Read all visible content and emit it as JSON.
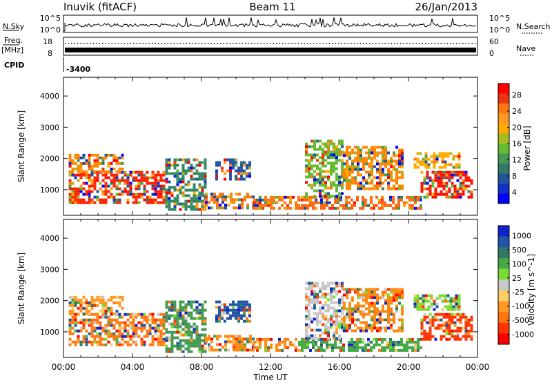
{
  "header": {
    "station": "Inuvik (fitACF)",
    "beam": "Beam 11",
    "date": "26/Jan/2013"
  },
  "strips": {
    "nsky_label": "N.Sky",
    "nsky_ticks": [
      "10^5",
      "10^0"
    ],
    "nsearch_label": "N.Search",
    "nsearch_ticks": [
      "10^5",
      "10^0"
    ],
    "freq_label": "Freq.",
    "freq_unit": "[MHz]",
    "freq_ticks": [
      "18",
      "8"
    ],
    "nave_label": "Nave",
    "nave_ticks": [
      "60",
      "0"
    ],
    "cpid_label": "CPID",
    "cpid_value": "-3400"
  },
  "axes": {
    "ylabel": "Slant Range [km]",
    "xlabel": "Time UT"
  },
  "chart_data": [
    {
      "type": "heatmap",
      "panel": "power",
      "x_range_hours": [
        0,
        24
      ],
      "x_ticks": [
        "00:00",
        "04:00",
        "08:00",
        "12:00",
        "16:00",
        "20:00",
        "00:00"
      ],
      "y_range_km": [
        180,
        4600
      ],
      "y_ticks": [
        1000,
        2000,
        3000,
        4000
      ],
      "colorbar": {
        "label": "Power [dB]",
        "ticks": [
          "28",
          "24",
          "20",
          "16",
          "12",
          "8",
          "4"
        ],
        "colors": [
          "#ff0000",
          "#ee3311",
          "#ff7711",
          "#ff9922",
          "#ffaa00",
          "#aabb22",
          "#66bb33",
          "#449955",
          "#337766",
          "#225599",
          "#1133cc",
          "#0000ff"
        ]
      },
      "echo_regions": [
        {
          "t": [
            0.3,
            5.9
          ],
          "r": [
            550,
            1600
          ],
          "dominant": "#ff2200"
        },
        {
          "t": [
            0.3,
            3.4
          ],
          "r": [
            1550,
            2150
          ],
          "dominant": "#ff8800"
        },
        {
          "t": [
            5.9,
            8.2
          ],
          "r": [
            400,
            2000
          ],
          "dominant": "#338866"
        },
        {
          "t": [
            8.2,
            11.0
          ],
          "r": [
            450,
            900
          ],
          "dominant": "#ff7711"
        },
        {
          "t": [
            8.8,
            10.8
          ],
          "r": [
            1300,
            2000
          ],
          "dominant": "#2255aa"
        },
        {
          "t": [
            11.0,
            13.6
          ],
          "r": [
            400,
            800
          ],
          "dominant": "#ff7711"
        },
        {
          "t": [
            13.6,
            20.7
          ],
          "r": [
            400,
            800
          ],
          "dominant": "#ff6611"
        },
        {
          "t": [
            14.0,
            16.2
          ],
          "r": [
            800,
            2600
          ],
          "dominant": "#66bb33"
        },
        {
          "t": [
            16.2,
            19.6
          ],
          "r": [
            1000,
            2400
          ],
          "dominant": "#ff8800"
        },
        {
          "t": [
            20.7,
            23.7
          ],
          "r": [
            750,
            1600
          ],
          "dominant": "#ff1100"
        },
        {
          "t": [
            20.3,
            23.0
          ],
          "r": [
            1700,
            2200
          ],
          "dominant": "#ffaa00"
        }
      ]
    },
    {
      "type": "heatmap",
      "panel": "velocity",
      "x_range_hours": [
        0,
        24
      ],
      "x_ticks": [
        "00:00",
        "04:00",
        "08:00",
        "12:00",
        "16:00",
        "20:00",
        "00:00"
      ],
      "y_range_km": [
        180,
        4600
      ],
      "y_ticks": [
        1000,
        2000,
        3000,
        4000
      ],
      "colorbar": {
        "label": "Velocity [m s^-1]",
        "ticks": [
          "1000",
          "500",
          "100",
          "25",
          "-25",
          "-100",
          "-500",
          "-1000"
        ],
        "colors": [
          "#1122cc",
          "#2255aa",
          "#337766",
          "#44aa44",
          "#77dd33",
          "#c8c8c8",
          "#ffcc66",
          "#ff9922",
          "#ff7711",
          "#ff3300",
          "#ff0000"
        ]
      },
      "echo_regions": [
        {
          "t": [
            0.3,
            5.9
          ],
          "r": [
            550,
            1600
          ],
          "dominant": "#ff7711"
        },
        {
          "t": [
            0.3,
            3.4
          ],
          "r": [
            1550,
            2150
          ],
          "dominant": "#ff9922"
        },
        {
          "t": [
            5.9,
            8.2
          ],
          "r": [
            400,
            2000
          ],
          "dominant": "#449955"
        },
        {
          "t": [
            8.2,
            11.0
          ],
          "r": [
            450,
            900
          ],
          "dominant": "#ff8811"
        },
        {
          "t": [
            8.8,
            10.8
          ],
          "r": [
            1300,
            2000
          ],
          "dominant": "#2255aa"
        },
        {
          "t": [
            11.0,
            13.6
          ],
          "r": [
            400,
            800
          ],
          "dominant": "#ff8811"
        },
        {
          "t": [
            13.6,
            20.7
          ],
          "r": [
            400,
            800
          ],
          "dominant": "#44aa44"
        },
        {
          "t": [
            14.0,
            16.2
          ],
          "r": [
            800,
            2600
          ],
          "dominant": "#c8c8c8"
        },
        {
          "t": [
            16.2,
            19.6
          ],
          "r": [
            1000,
            2400
          ],
          "dominant": "#ff8811"
        },
        {
          "t": [
            20.7,
            23.7
          ],
          "r": [
            750,
            1600
          ],
          "dominant": "#ff3300"
        },
        {
          "t": [
            20.3,
            23.0
          ],
          "r": [
            1700,
            2200
          ],
          "dominant": "#77dd33"
        }
      ]
    }
  ]
}
